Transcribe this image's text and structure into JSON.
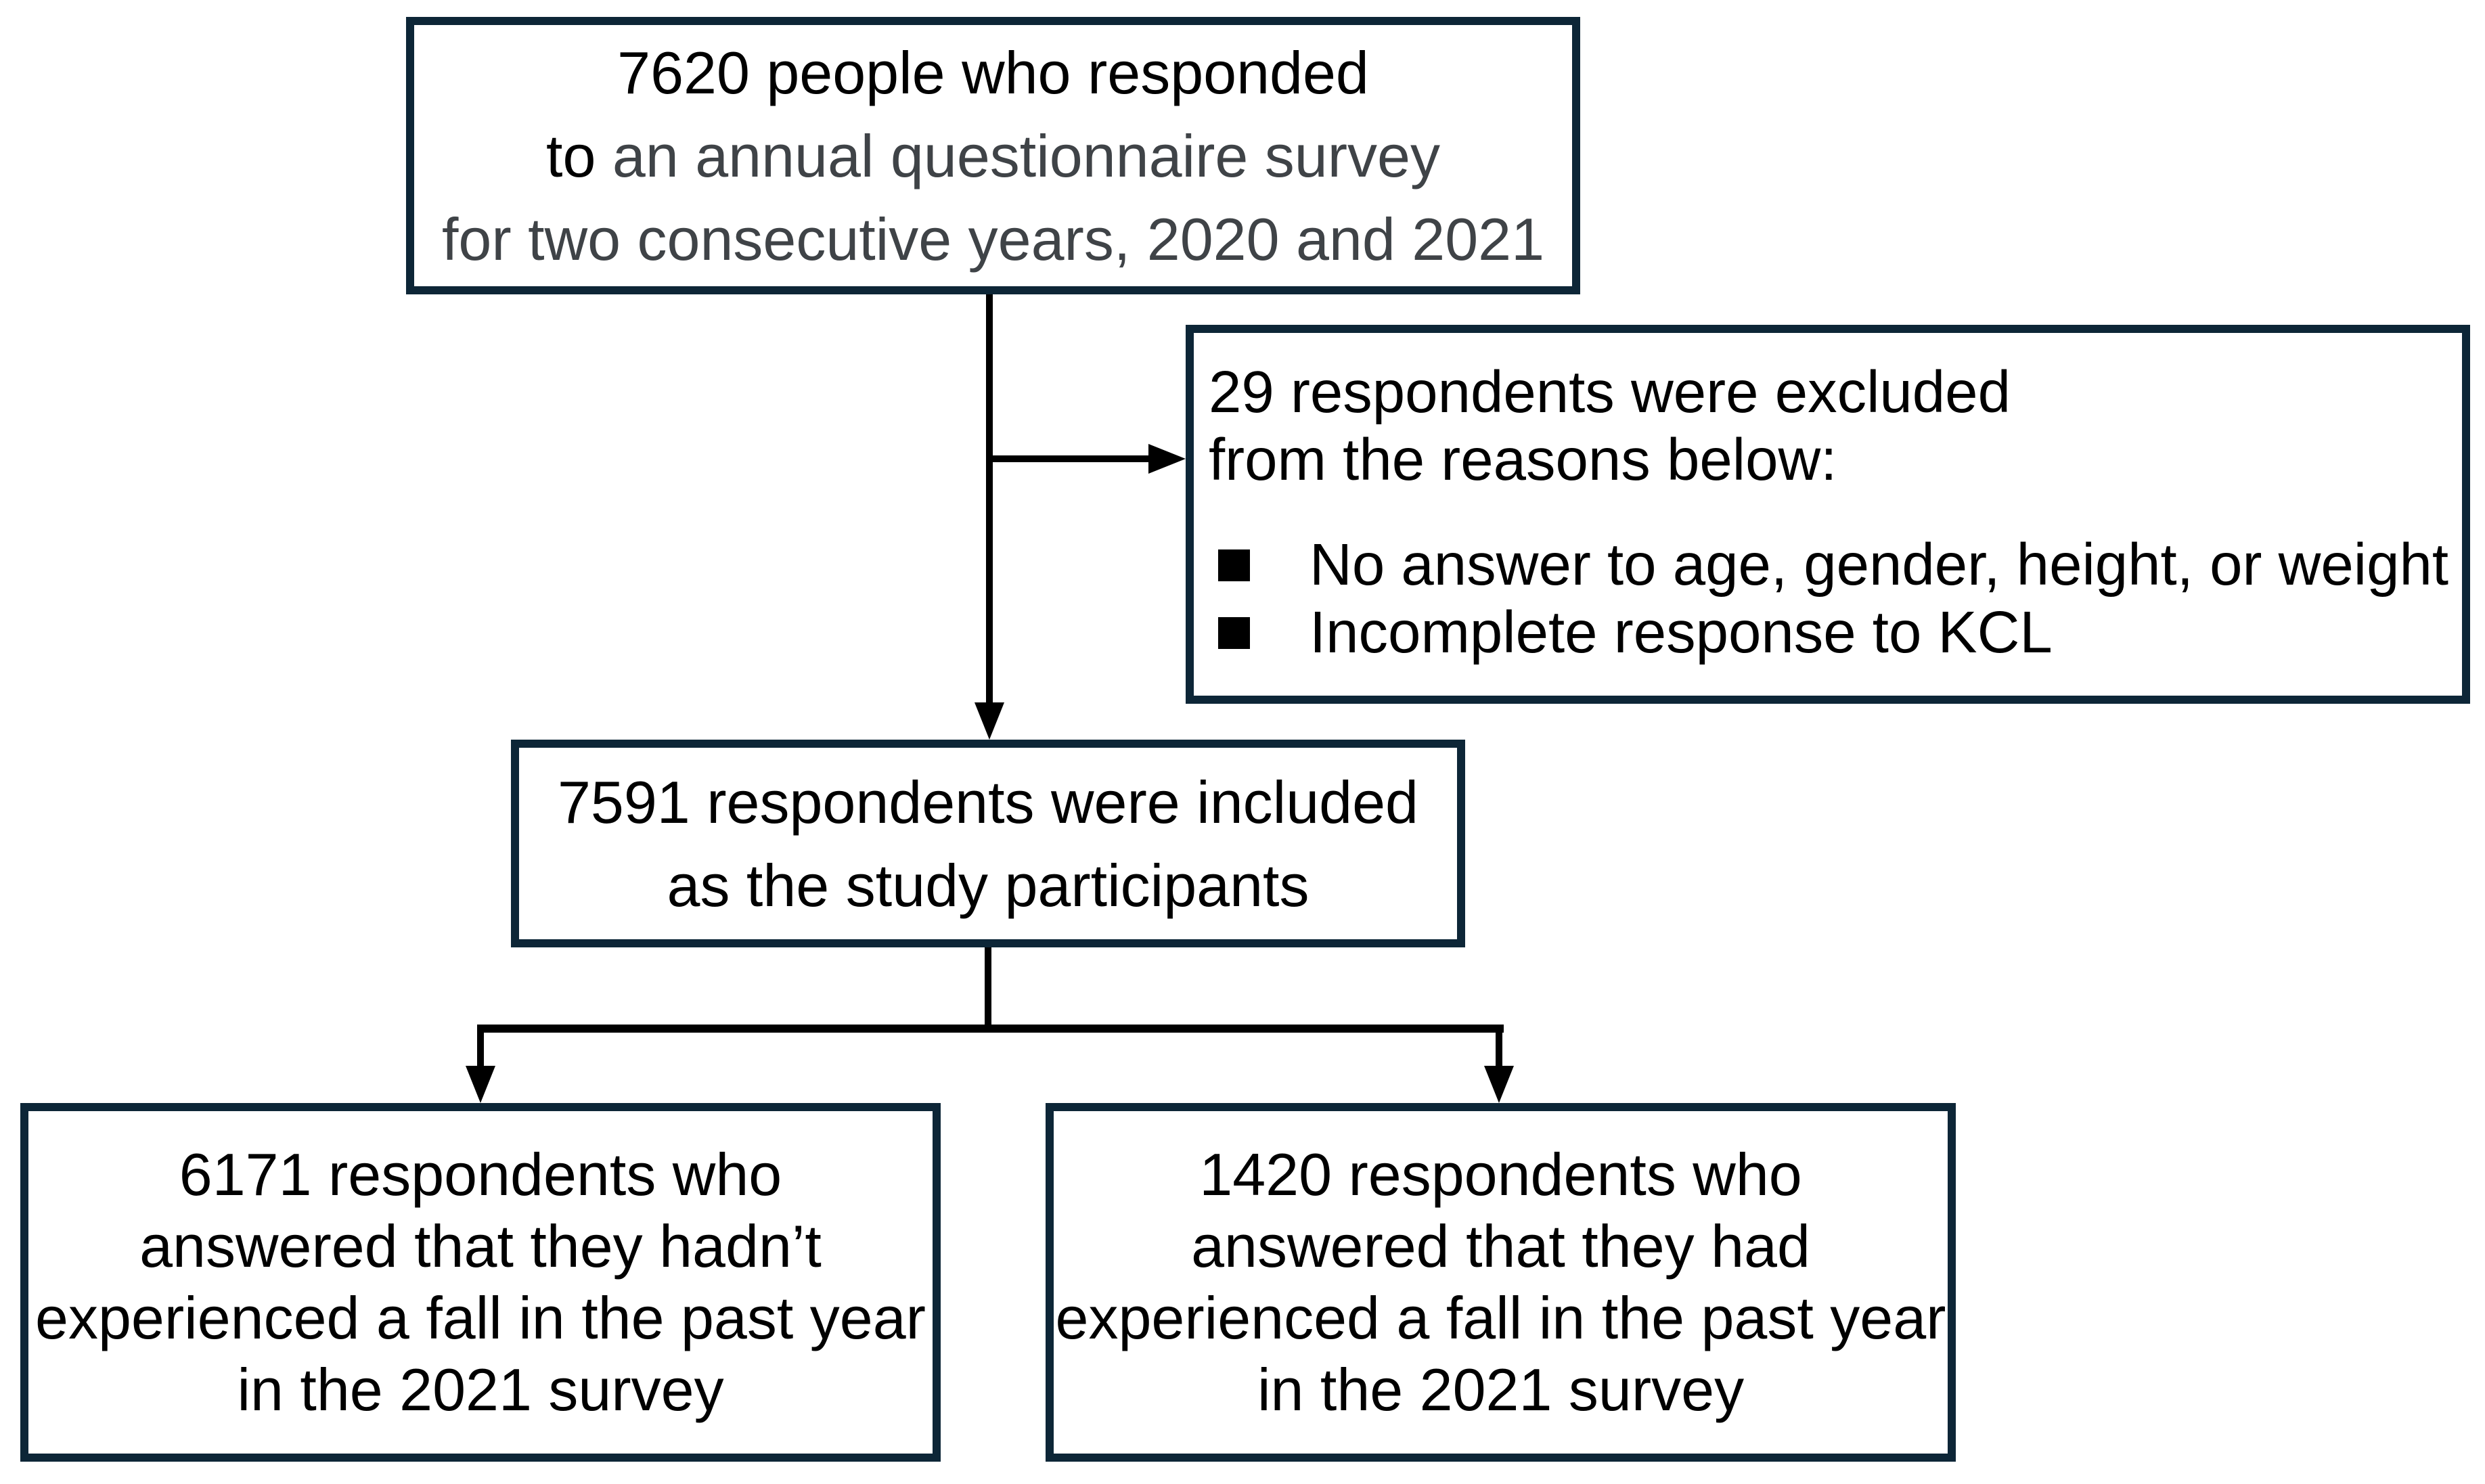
{
  "palette": {
    "background": "#ffffff",
    "box_border": "#0d2637",
    "connector_line": "#000000",
    "text_primary": "#000000",
    "text_secondary": "#3f4347",
    "bullet": "#000000"
  },
  "flow": {
    "source_box": {
      "line1": "7620 people who responded",
      "line2_prefix": "to ",
      "line2_rest": "an annual questionnaire survey",
      "line3": "for two consecutive years, 2020 and 2021"
    },
    "exclusion_box": {
      "header_line1": "29 respondents were excluded",
      "header_line2": "from the reasons below:",
      "bullet_icon": "black-square",
      "bullets": [
        "No answer to age, gender, height, or weight",
        "Incomplete response to KCL"
      ]
    },
    "included_box": {
      "line1": "7591 respondents were included",
      "line2": "as the study participants"
    },
    "no_fall_box": {
      "lines": [
        "6171 respondents who",
        "answered that they hadn’t",
        "experienced a fall in the past year",
        "in the 2021 survey"
      ]
    },
    "fall_box": {
      "lines": [
        "1420 respondents who",
        "answered that they had",
        "experienced a fall in the past year",
        "in the 2021 survey"
      ]
    }
  }
}
